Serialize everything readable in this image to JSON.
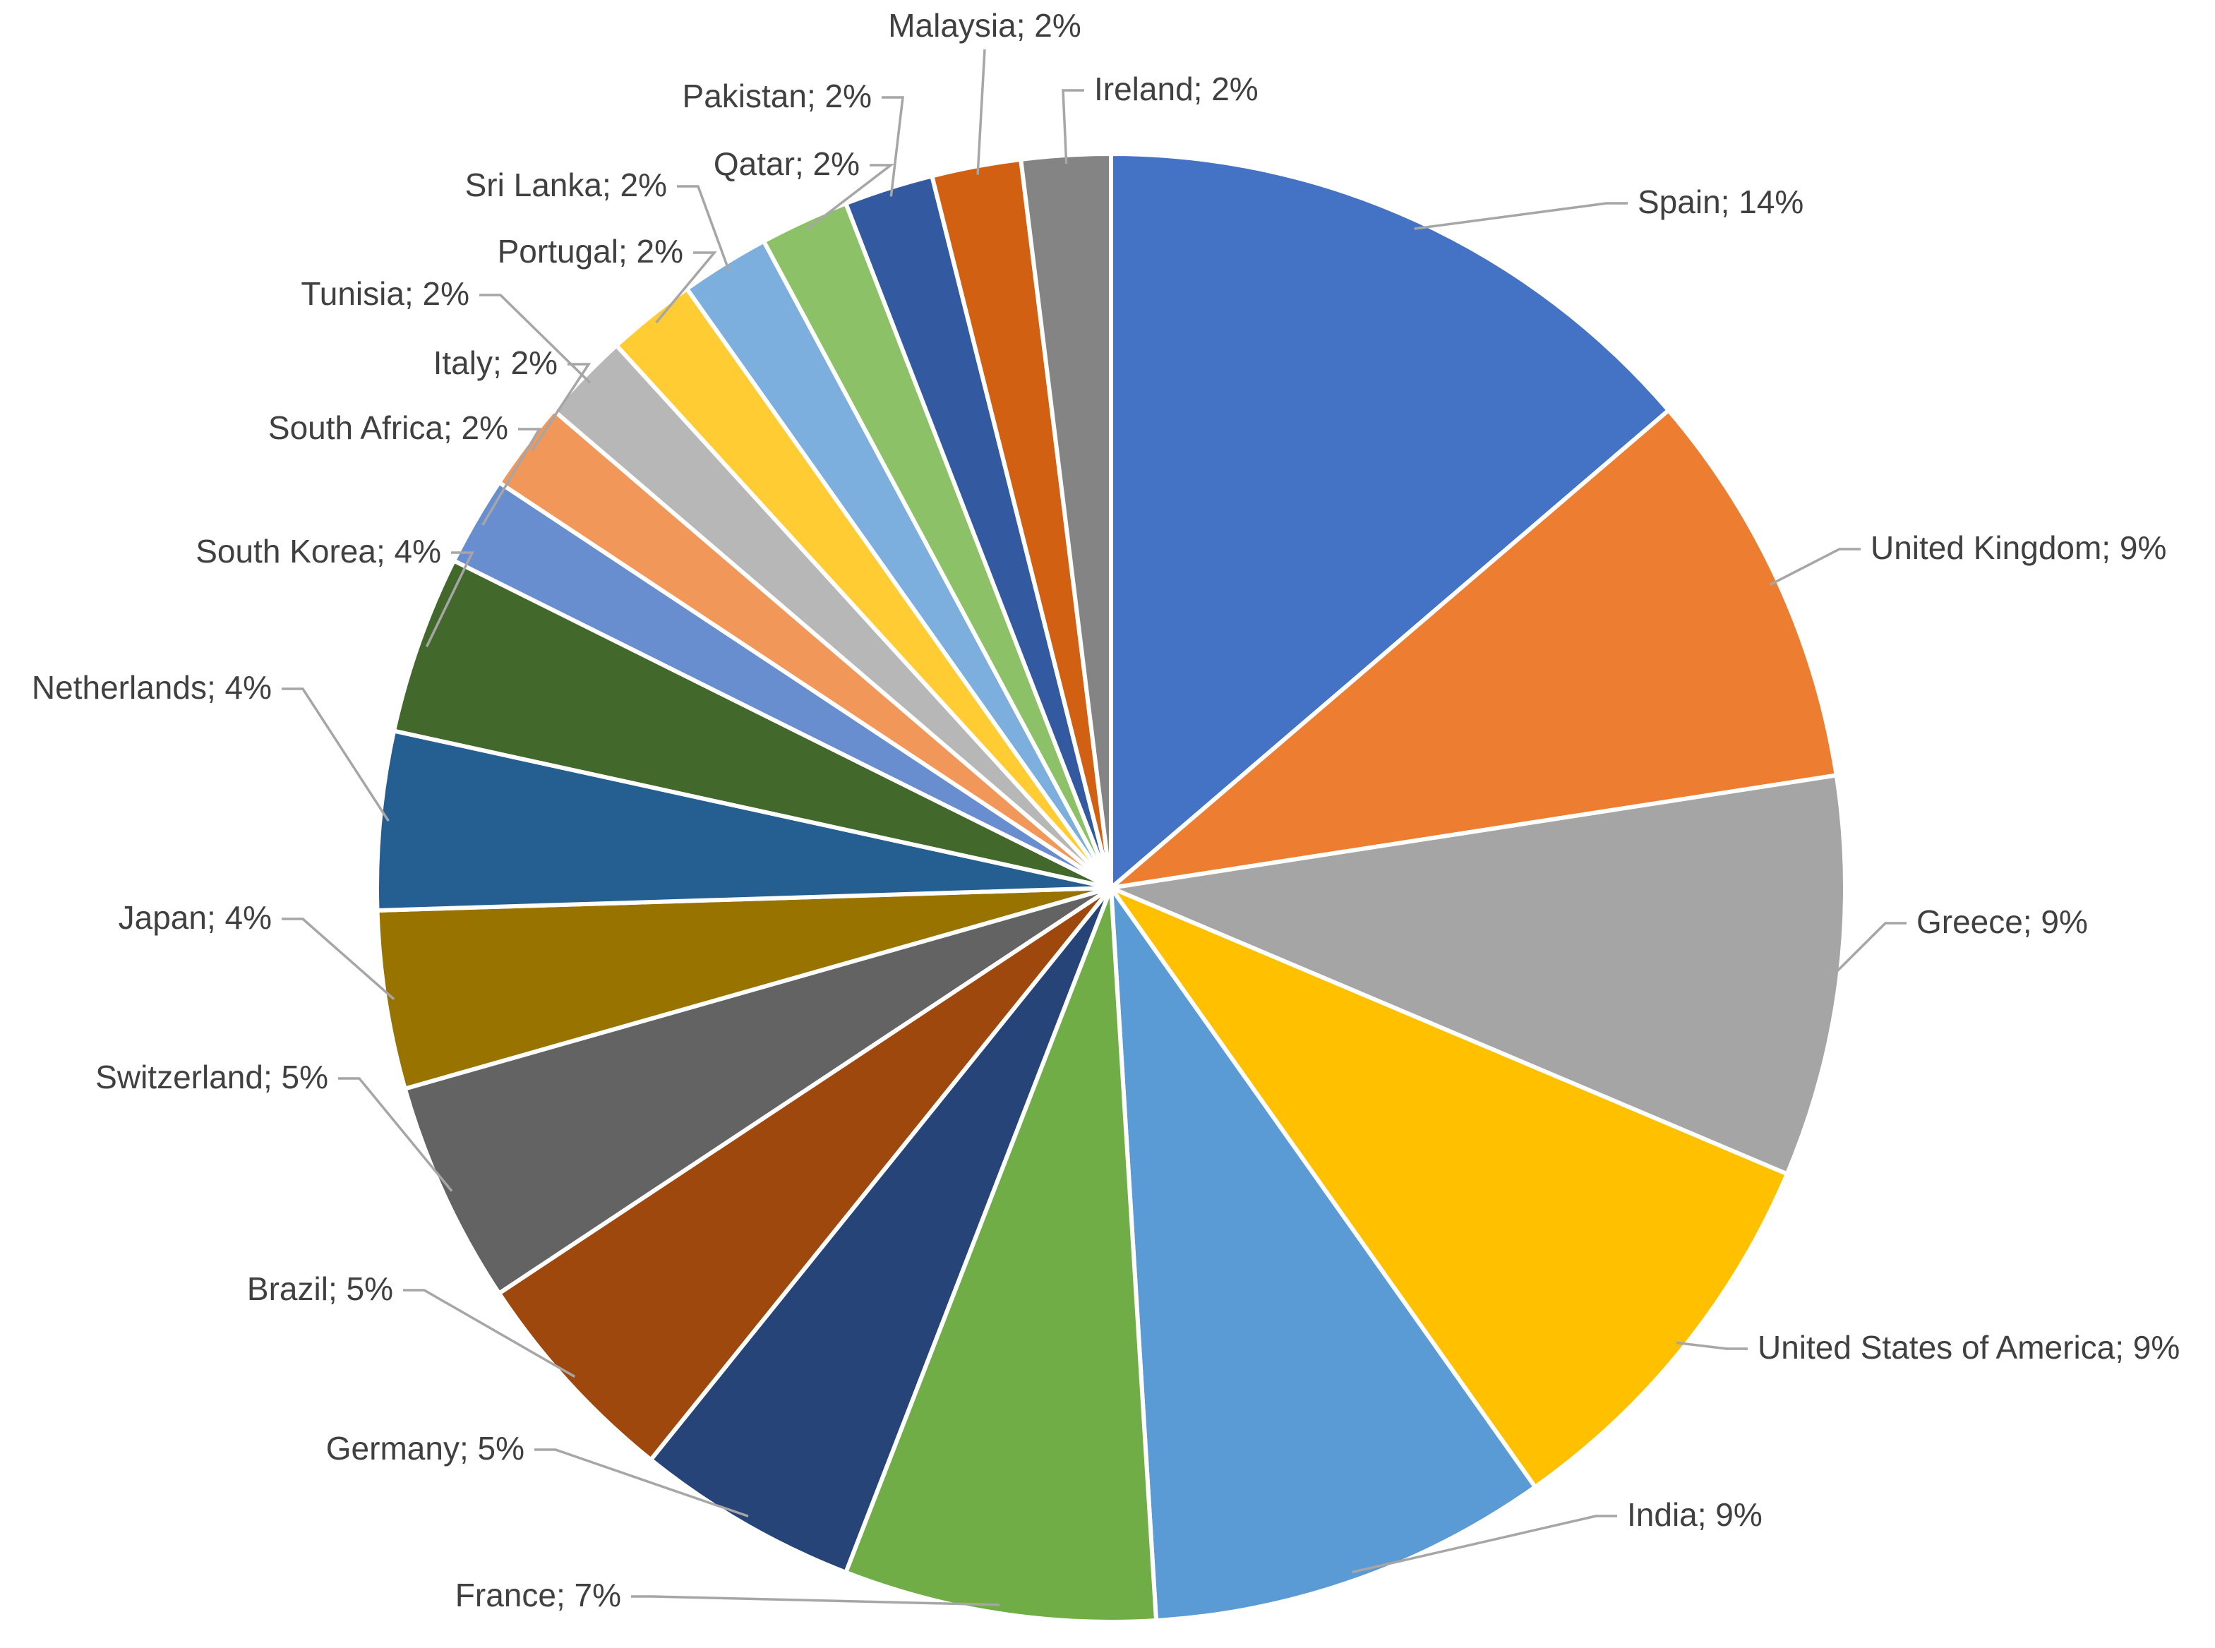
{
  "chart_data": {
    "type": "pie",
    "title": "",
    "label_format": "{category}; {value}%",
    "start_angle_deg": 0,
    "direction": "clockwise",
    "slices": [
      {
        "category": "Spain",
        "value": 14,
        "color": "#4472C4"
      },
      {
        "category": "United Kingdom",
        "value": 9,
        "color": "#ED7D31"
      },
      {
        "category": "Greece",
        "value": 9,
        "color": "#A5A5A5"
      },
      {
        "category": "United States of America",
        "value": 9,
        "color": "#FFC000"
      },
      {
        "category": "India",
        "value": 9,
        "color": "#5B9BD5"
      },
      {
        "category": "France",
        "value": 7,
        "color": "#70AD47"
      },
      {
        "category": "Germany",
        "value": 5,
        "color": "#264478"
      },
      {
        "category": "Brazil",
        "value": 5,
        "color": "#9E480E"
      },
      {
        "category": "Switzerland",
        "value": 5,
        "color": "#636363"
      },
      {
        "category": "Japan",
        "value": 4,
        "color": "#997300"
      },
      {
        "category": "Netherlands",
        "value": 4,
        "color": "#255E91"
      },
      {
        "category": "South Korea",
        "value": 4,
        "color": "#43682B"
      },
      {
        "category": "South Africa",
        "value": 2,
        "color": "#698ED0"
      },
      {
        "category": "Italy",
        "value": 2,
        "color": "#F1975A"
      },
      {
        "category": "Tunisia",
        "value": 2,
        "color": "#B7B7B7"
      },
      {
        "category": "Portugal",
        "value": 2,
        "color": "#FFCD33"
      },
      {
        "category": "Sri Lanka",
        "value": 2,
        "color": "#7CAFDD"
      },
      {
        "category": "Qatar",
        "value": 2,
        "color": "#8CC168"
      },
      {
        "category": "Pakistan",
        "value": 2,
        "color": "#335AA1"
      },
      {
        "category": "Malaysia",
        "value": 2,
        "color": "#D26012"
      },
      {
        "category": "Ireland",
        "value": 2,
        "color": "#848484"
      }
    ]
  }
}
